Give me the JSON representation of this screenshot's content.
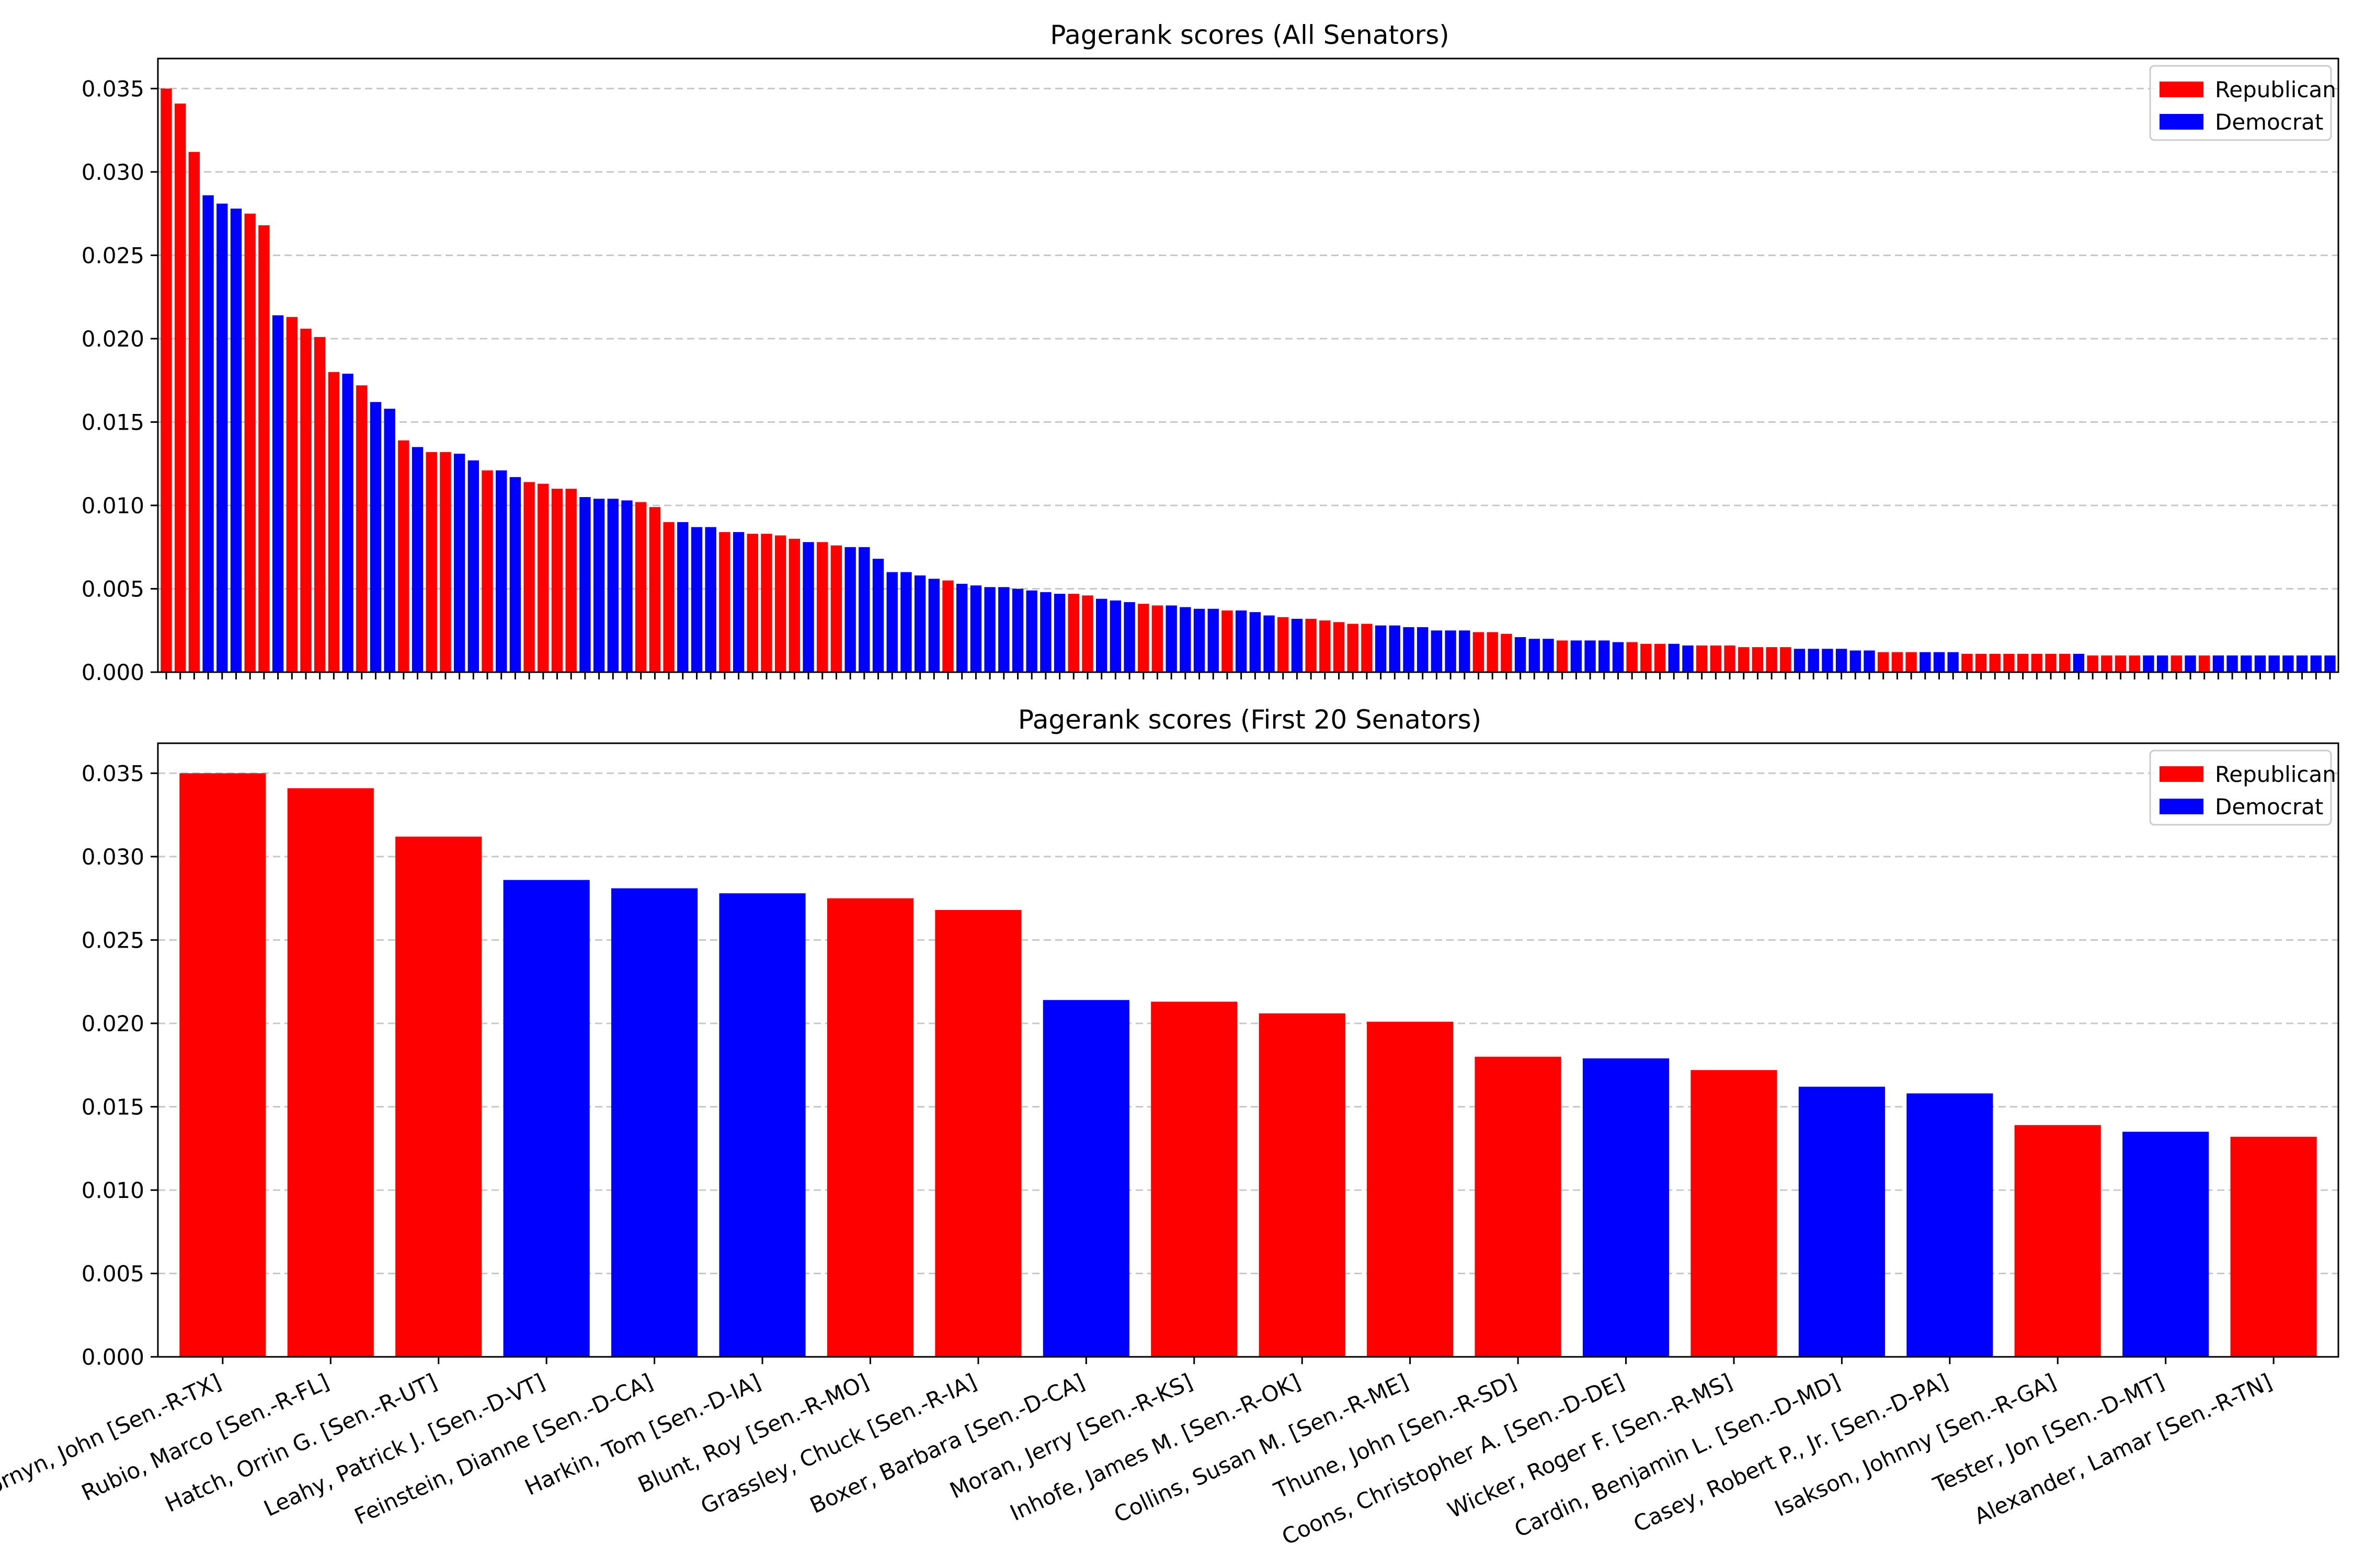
{
  "colors": {
    "republican": "#ff0000",
    "democrat": "#0000ff",
    "grid": "#c8c8c8",
    "axis": "#000000"
  },
  "legend": [
    {
      "label": "Republican",
      "party": "R"
    },
    {
      "label": "Democrat",
      "party": "D"
    }
  ],
  "chart_data": [
    {
      "type": "bar",
      "title": "Pagerank scores (All Senators)",
      "xlabel": "",
      "ylabel": "",
      "ylim": [
        0,
        0.0368
      ],
      "yticks": [
        "0.000",
        "0.005",
        "0.010",
        "0.015",
        "0.020",
        "0.025",
        "0.030",
        "0.035"
      ],
      "grid": "horizontal dashed",
      "legend_position": "top-right",
      "x_tick_labels_shown": false,
      "parties": [
        "R",
        "R",
        "R",
        "D",
        "D",
        "D",
        "R",
        "R",
        "D",
        "R",
        "R",
        "R",
        "R",
        "D",
        "R",
        "D",
        "D",
        "R",
        "D",
        "R",
        "R",
        "D",
        "D",
        "R",
        "D",
        "D",
        "R",
        "R",
        "R",
        "R",
        "D",
        "D",
        "D",
        "D",
        "R",
        "R",
        "R",
        "D",
        "D",
        "D",
        "R",
        "D",
        "R",
        "R",
        "R",
        "R",
        "D",
        "R",
        "R",
        "D",
        "D",
        "D",
        "D",
        "D",
        "D",
        "D",
        "R",
        "D",
        "D",
        "D",
        "D",
        "D",
        "D",
        "D",
        "D",
        "R",
        "R",
        "D",
        "D",
        "D",
        "R",
        "R",
        "D",
        "D",
        "D",
        "D",
        "R",
        "D",
        "D",
        "D",
        "R",
        "D",
        "R",
        "R",
        "R",
        "R",
        "R",
        "D",
        "D",
        "D",
        "D",
        "D",
        "D",
        "D",
        "R",
        "R",
        "R",
        "D",
        "D",
        "D",
        "R",
        "D",
        "D",
        "D",
        "D",
        "R",
        "R",
        "R",
        "D",
        "D",
        "R",
        "R",
        "R",
        "R",
        "R",
        "R",
        "R",
        "D",
        "D",
        "D",
        "D",
        "D",
        "D",
        "R",
        "R",
        "R",
        "D",
        "D",
        "D",
        "R",
        "R",
        "R",
        "R",
        "R",
        "R",
        "R",
        "R",
        "D",
        "R",
        "R",
        "R",
        "R",
        "D",
        "D",
        "R",
        "D",
        "R",
        "D"
      ],
      "values": [
        0.035,
        0.0341,
        0.0312,
        0.0286,
        0.0281,
        0.0278,
        0.0275,
        0.0268,
        0.0214,
        0.0213,
        0.0206,
        0.0201,
        0.018,
        0.0179,
        0.0172,
        0.0162,
        0.0158,
        0.0139,
        0.0135,
        0.0132,
        0.0132,
        0.0131,
        0.0127,
        0.0121,
        0.0121,
        0.0117,
        0.0114,
        0.0113,
        0.011,
        0.011,
        0.0105,
        0.0104,
        0.0104,
        0.0103,
        0.0102,
        0.0099,
        0.009,
        0.009,
        0.0087,
        0.0087,
        0.0084,
        0.0084,
        0.0083,
        0.0083,
        0.0082,
        0.008,
        0.0078,
        0.0078,
        0.0076,
        0.0075,
        0.0075,
        0.0068,
        0.006,
        0.006,
        0.0058,
        0.0056,
        0.0055,
        0.0053,
        0.0052,
        0.0051,
        0.0051,
        0.005,
        0.0049,
        0.0048,
        0.0047,
        0.0047,
        0.0046,
        0.0044,
        0.0043,
        0.0042,
        0.0041,
        0.004,
        0.004,
        0.0039,
        0.0038,
        0.0038,
        0.0037,
        0.0037,
        0.0036,
        0.0034,
        0.0033,
        0.0032,
        0.0032,
        0.0031,
        0.003,
        0.0029,
        0.0029,
        0.0028,
        0.0028,
        0.0027,
        0.0027,
        0.0025,
        0.0025,
        0.0025,
        0.0024,
        0.0024,
        0.0023,
        0.0021,
        0.002,
        0.002,
        0.0019,
        0.0019,
        0.0019,
        0.0019,
        0.0018,
        0.0018,
        0.0017,
        0.0017,
        0.0017,
        0.0016,
        0.0016,
        0.0016,
        0.0016,
        0.0015,
        0.0015,
        0.0015,
        0.0015,
        0.0014,
        0.0014,
        0.0014,
        0.0014,
        0.0013,
        0.0013,
        0.0012,
        0.0012,
        0.0012,
        0.0012,
        0.0012,
        0.0012,
        0.0011,
        0.0011,
        0.0011,
        0.0011,
        0.0011,
        0.0011,
        0.0011,
        0.0011,
        0.0011,
        0.001,
        0.001,
        0.001,
        0.001,
        0.001,
        0.001,
        0.001,
        0.001,
        0.001,
        0.001,
        0.001,
        0.001,
        0.001,
        0.001,
        0.001,
        0.001,
        0.001,
        0.001
      ]
    },
    {
      "type": "bar",
      "title": "Pagerank scores (First 20 Senators)",
      "xlabel": "",
      "ylabel": "",
      "ylim": [
        0,
        0.0368
      ],
      "yticks": [
        "0.000",
        "0.005",
        "0.010",
        "0.015",
        "0.020",
        "0.025",
        "0.030",
        "0.035"
      ],
      "grid": "horizontal dashed",
      "legend_position": "top-right",
      "x_tick_labels_shown": true,
      "categories": [
        "Cornyn, John [Sen.-R-TX]",
        "Rubio, Marco [Sen.-R-FL]",
        "Hatch, Orrin G. [Sen.-R-UT]",
        "Leahy, Patrick J. [Sen.-D-VT]",
        "Feinstein, Dianne [Sen.-D-CA]",
        "Harkin, Tom [Sen.-D-IA]",
        "Blunt, Roy [Sen.-R-MO]",
        "Grassley, Chuck [Sen.-R-IA]",
        "Boxer, Barbara [Sen.-D-CA]",
        "Moran, Jerry [Sen.-R-KS]",
        "Inhofe, James M. [Sen.-R-OK]",
        "Collins, Susan M. [Sen.-R-ME]",
        "Thune, John [Sen.-R-SD]",
        "Coons, Christopher A. [Sen.-D-DE]",
        "Wicker, Roger F. [Sen.-R-MS]",
        "Cardin, Benjamin L. [Sen.-D-MD]",
        "Casey, Robert P., Jr. [Sen.-D-PA]",
        "Isakson, Johnny [Sen.-R-GA]",
        "Tester, Jon [Sen.-D-MT]",
        "Alexander, Lamar [Sen.-R-TN]"
      ],
      "parties": [
        "R",
        "R",
        "R",
        "D",
        "D",
        "D",
        "R",
        "R",
        "D",
        "R",
        "R",
        "R",
        "R",
        "D",
        "R",
        "D",
        "D",
        "R",
        "D",
        "R"
      ],
      "values": [
        0.035,
        0.0341,
        0.0312,
        0.0286,
        0.0281,
        0.0278,
        0.0275,
        0.0268,
        0.0214,
        0.0213,
        0.0206,
        0.0201,
        0.018,
        0.0179,
        0.0172,
        0.0162,
        0.0158,
        0.0139,
        0.0135,
        0.0132
      ]
    }
  ]
}
